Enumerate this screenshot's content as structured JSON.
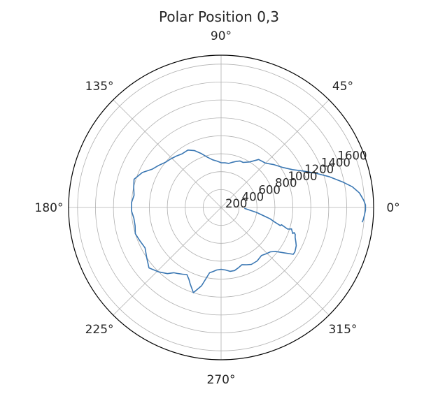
{
  "chart_data": {
    "type": "polar-line",
    "title": "Polar Position 0,3",
    "theta_tick_labels": [
      "0°",
      "45°",
      "90°",
      "135°",
      "180°",
      "225°",
      "270°",
      "315°"
    ],
    "theta_ticks_deg": [
      0,
      45,
      90,
      135,
      180,
      225,
      270,
      315
    ],
    "r_tick_labels": [
      "200",
      "400",
      "600",
      "800",
      "1000",
      "1200",
      "1400",
      "1600"
    ],
    "r_ticks": [
      200,
      400,
      600,
      800,
      1000,
      1200,
      1400,
      1600
    ],
    "rlim": [
      0,
      1700
    ],
    "r_label_angle_deg": 22.5,
    "grid": true,
    "series": [
      {
        "color": "#3a77b3",
        "theta_deg": [
          -2,
          -8,
          -13,
          -15,
          -17,
          -16,
          -18,
          -17,
          -20,
          -19,
          -20,
          -22,
          -23,
          -25,
          -27,
          -29,
          -31,
          -33,
          -36,
          -39,
          -42,
          -46,
          -50,
          -56,
          -62,
          -66,
          -70,
          -74,
          -78,
          -82,
          -86,
          -90,
          -94,
          -97,
          -100,
          -104,
          -108,
          -112,
          -114,
          -117,
          -120,
          -123,
          -126,
          -129,
          -134,
          -140,
          -146,
          -152,
          -158,
          -163,
          -168,
          -173,
          -178,
          177,
          172,
          167,
          162,
          156,
          151,
          146,
          141,
          136,
          131,
          126,
          120,
          115,
          110,
          105,
          100,
          95,
          90,
          85,
          80,
          76,
          72,
          68,
          64,
          58,
          52,
          45,
          39,
          33,
          28,
          24,
          20,
          16,
          12,
          9,
          6,
          3,
          1,
          -1,
          -3,
          -5,
          -6
        ],
        "r": [
          260,
          400,
          560,
          610,
          690,
          700,
          780,
          820,
          850,
          860,
          880,
          890,
          900,
          920,
          940,
          950,
          960,
          960,
          860,
          780,
          740,
          720,
          700,
          720,
          720,
          700,
          680,
          700,
          720,
          720,
          700,
          690,
          700,
          720,
          740,
          900,
          1000,
          920,
          880,
          840,
          860,
          880,
          900,
          950,
          1000,
          1050,
          1000,
          960,
          980,
          1000,
          980,
          980,
          1000,
          1000,
          980,
          1000,
          1020,
          960,
          880,
          840,
          800,
          780,
          760,
          740,
          740,
          700,
          640,
          580,
          540,
          520,
          500,
          500,
          500,
          520,
          540,
          560,
          560,
          600,
          680,
          700,
          760,
          820,
          900,
          1000,
          1120,
          1250,
          1380,
          1480,
          1550,
          1590,
          1610,
          1610,
          1600,
          1590,
          1580
        ]
      }
    ]
  }
}
